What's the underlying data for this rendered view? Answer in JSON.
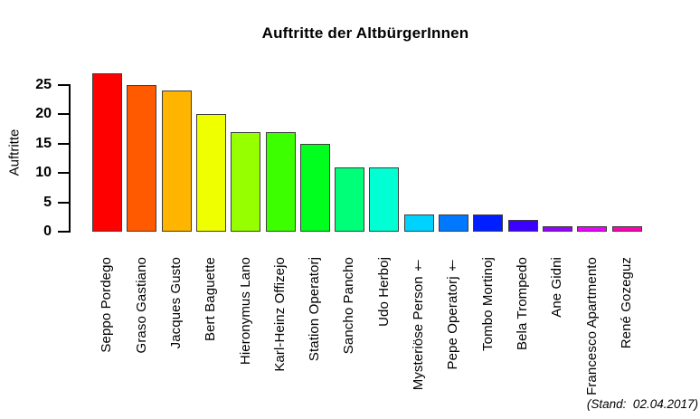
{
  "chart": {
    "title": "Auftritte der AltbürgerInnen",
    "y_axis_title": "Auftritte",
    "note": "(Stand:  02.04.2017)"
  },
  "chart_data": {
    "type": "bar",
    "title": "Auftritte der AltbürgerInnen",
    "xlabel": "",
    "ylabel": "Auftritte",
    "categories": [
      "Seppo Pordego",
      "Graso Gastiano",
      "Jacques Gusto",
      "Bert Baguette",
      "Hieronymus Lano",
      "Karl-Heinz Offizejo",
      "Station Operatorj",
      "Sancho Pancho",
      "Udo Herboj",
      "Mysteriöse Person †",
      "Pepe Operatorj †",
      "Tombo Mortinoj",
      "Bela Trompedo",
      "Ane Gidni",
      "Francesco Apartmento",
      "René Gozeguz"
    ],
    "values": [
      27,
      25,
      24,
      20,
      17,
      17,
      15,
      11,
      11,
      3,
      3,
      3,
      2,
      1,
      1,
      1
    ],
    "bar_colors": [
      "#FF0000",
      "#FF5A00",
      "#FFB400",
      "#F0FF00",
      "#96FF00",
      "#3CFF00",
      "#00FF1E",
      "#00FF78",
      "#00FFD2",
      "#00D2FF",
      "#0078FF",
      "#001EFF",
      "#3C00FF",
      "#9600FF",
      "#F000FF",
      "#FF00B4"
    ],
    "bar_border_color": "#3d3d3d",
    "yticks": [
      0,
      5,
      10,
      15,
      20,
      25
    ],
    "ylim": [
      0,
      27
    ],
    "grid": false,
    "legend": null,
    "x_labels_rotated_90": true,
    "annotation": "(Stand:  02.04.2017)"
  }
}
